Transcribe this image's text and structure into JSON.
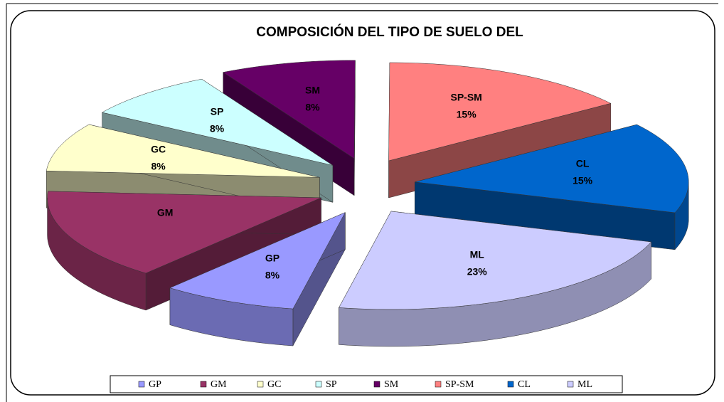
{
  "chart_data": {
    "type": "pie",
    "title": "COMPOSICIÓN  DEL  TIPO  DE  SUELO  DEL",
    "categories": [
      "GP",
      "GM",
      "GC",
      "SP",
      "SM",
      "SP-SM",
      "CL",
      "ML"
    ],
    "values": [
      8,
      15,
      8,
      8,
      8,
      15,
      15,
      23
    ],
    "value_labels": [
      "8%",
      null,
      "8%",
      "8%",
      "8%",
      "15%",
      "15%",
      "23%"
    ],
    "colors": [
      "#9999ff",
      "#993366",
      "#ffffcc",
      "#ccffff",
      "#660066",
      "#ff8080",
      "#0066cc",
      "#ccccff"
    ],
    "legend": "bottom"
  }
}
